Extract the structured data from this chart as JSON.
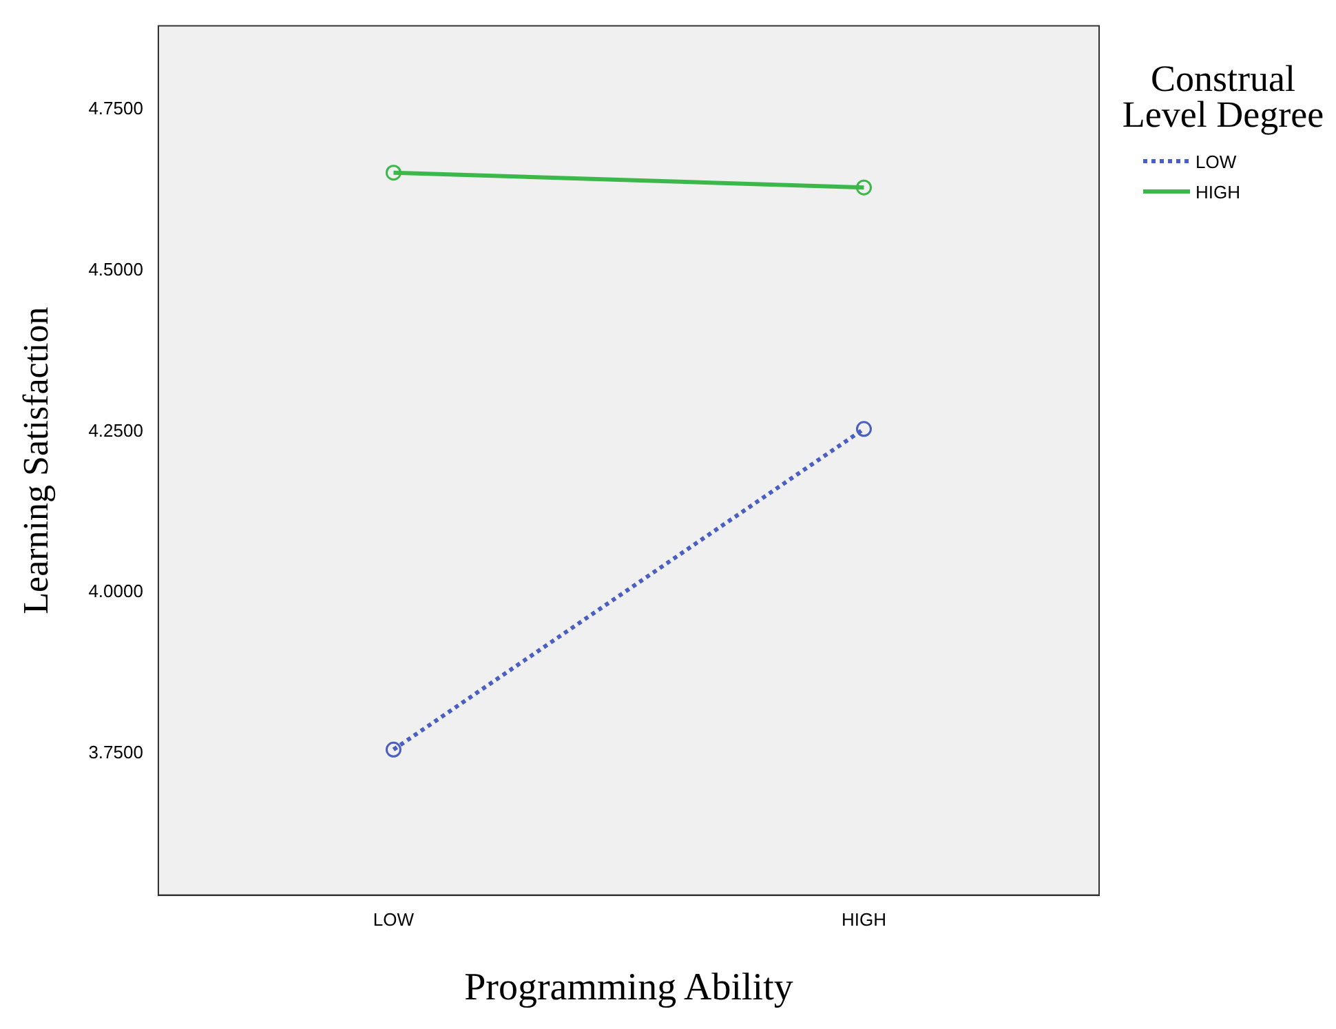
{
  "chart_data": {
    "type": "line",
    "xlabel": "Programming Ability",
    "ylabel": "Learning Satisfaction",
    "legend_title": "Construal Level Degree",
    "categories": [
      "LOW",
      "HIGH"
    ],
    "series": [
      {
        "name": "LOW",
        "color": "#4a5fc1",
        "values": [
          3.756,
          4.254
        ],
        "line_style": "dotted"
      },
      {
        "name": "HIGH",
        "color": "#3cb84a",
        "values": [
          4.652,
          4.629
        ],
        "line_style": "solid"
      }
    ],
    "ylim": [
      3.53,
      4.88
    ],
    "yticks": [
      {
        "value": 3.75,
        "label": "3.7500"
      },
      {
        "value": 4.0,
        "label": "4.0000"
      },
      {
        "value": 4.25,
        "label": "4.2500"
      },
      {
        "value": 4.5,
        "label": "4.5000"
      },
      {
        "value": 4.75,
        "label": "4.7500"
      }
    ],
    "grid": false,
    "legend": "top right",
    "marker": "circle"
  }
}
